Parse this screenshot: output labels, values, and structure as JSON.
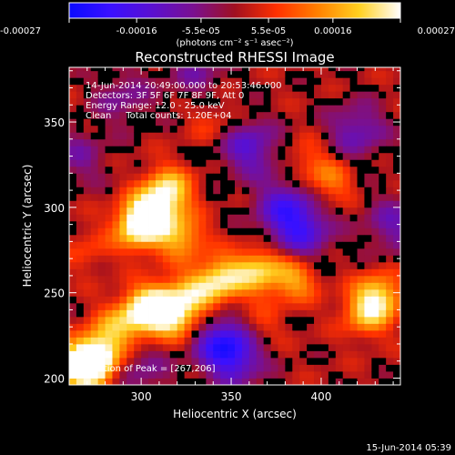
{
  "colors": {
    "background": "#000000",
    "foreground": "#ffffff",
    "colormap": [
      "#0a0aff",
      "#3a10ff",
      "#5a10d0",
      "#7a1090",
      "#a01020",
      "#ff3000",
      "#ff8000",
      "#ffd020",
      "#ffffff"
    ]
  },
  "colorbar": {
    "ticks": [
      "-0.00027",
      "-0.00016",
      "-5.5e-05",
      "5.5e-05",
      "0.00016",
      "0.00027"
    ],
    "tick_values": [
      -0.00027,
      -0.00016,
      -5.5e-05,
      5.5e-05,
      0.00016,
      0.00027
    ],
    "range": [
      -0.00027,
      0.00027
    ],
    "unit_label": "(photons cm⁻² s⁻¹ asec⁻²)"
  },
  "plot": {
    "title": "Reconstructed RHESSI Image",
    "info_lines": [
      "14-Jun-2014 20:49:00.000 to 20:53:46.000",
      "Detectors: 3F 5F 6F 7F 8F 9F, Att 0",
      "Energy Range: 12.0 - 25.0 keV",
      "Clean     Total counts: 1.20E+04"
    ],
    "peak_label": "Position of Peak = [267,206]",
    "footer_timestamp": "15-Jun-2014 05:39"
  },
  "chart_data": {
    "type": "heatmap",
    "title": "Reconstructed RHESSI Image",
    "xlabel": "Heliocentric X (arcsec)",
    "ylabel": "Heliocentric Y (arcsec)",
    "xlim": [
      260,
      444
    ],
    "ylim": [
      196,
      382
    ],
    "xticks": [
      300,
      350,
      400
    ],
    "yticks": [
      200,
      250,
      300,
      350
    ],
    "colorbar_range": [
      -0.00027,
      0.00027
    ],
    "peak_position": [
      267,
      206
    ],
    "hot_spots": [
      {
        "x": 267,
        "y": 206,
        "level": 1.0
      },
      {
        "x": 275,
        "y": 212,
        "level": 0.95
      },
      {
        "x": 305,
        "y": 296,
        "level": 0.92
      },
      {
        "x": 315,
        "y": 310,
        "level": 0.8
      },
      {
        "x": 298,
        "y": 288,
        "level": 0.75
      },
      {
        "x": 322,
        "y": 283,
        "level": 0.6
      },
      {
        "x": 310,
        "y": 242,
        "level": 0.85
      },
      {
        "x": 300,
        "y": 238,
        "level": 0.7
      },
      {
        "x": 320,
        "y": 236,
        "level": 0.6
      },
      {
        "x": 345,
        "y": 258,
        "level": 0.75
      },
      {
        "x": 365,
        "y": 263,
        "level": 0.7
      },
      {
        "x": 385,
        "y": 258,
        "level": 0.55
      },
      {
        "x": 330,
        "y": 250,
        "level": 0.55
      },
      {
        "x": 285,
        "y": 228,
        "level": 0.5
      },
      {
        "x": 432,
        "y": 248,
        "level": 0.7
      },
      {
        "x": 425,
        "y": 238,
        "level": 0.55
      },
      {
        "x": 405,
        "y": 315,
        "level": 0.4
      },
      {
        "x": 392,
        "y": 328,
        "level": 0.25
      },
      {
        "x": 340,
        "y": 350,
        "level": 0.2
      },
      {
        "x": 365,
        "y": 230,
        "level": 0.25
      },
      {
        "x": 270,
        "y": 275,
        "level": 0.2
      }
    ],
    "cold_spots": [
      {
        "x": 360,
        "y": 335,
        "level": -0.55
      },
      {
        "x": 380,
        "y": 300,
        "level": -0.6
      },
      {
        "x": 390,
        "y": 285,
        "level": -0.55
      },
      {
        "x": 345,
        "y": 222,
        "level": -0.6
      },
      {
        "x": 352,
        "y": 212,
        "level": -0.55
      },
      {
        "x": 420,
        "y": 345,
        "level": -0.45
      },
      {
        "x": 440,
        "y": 290,
        "level": -0.4
      },
      {
        "x": 265,
        "y": 330,
        "level": -0.3
      },
      {
        "x": 290,
        "y": 365,
        "level": -0.3
      },
      {
        "x": 330,
        "y": 380,
        "level": -0.3
      },
      {
        "x": 300,
        "y": 205,
        "level": -0.3
      }
    ]
  }
}
